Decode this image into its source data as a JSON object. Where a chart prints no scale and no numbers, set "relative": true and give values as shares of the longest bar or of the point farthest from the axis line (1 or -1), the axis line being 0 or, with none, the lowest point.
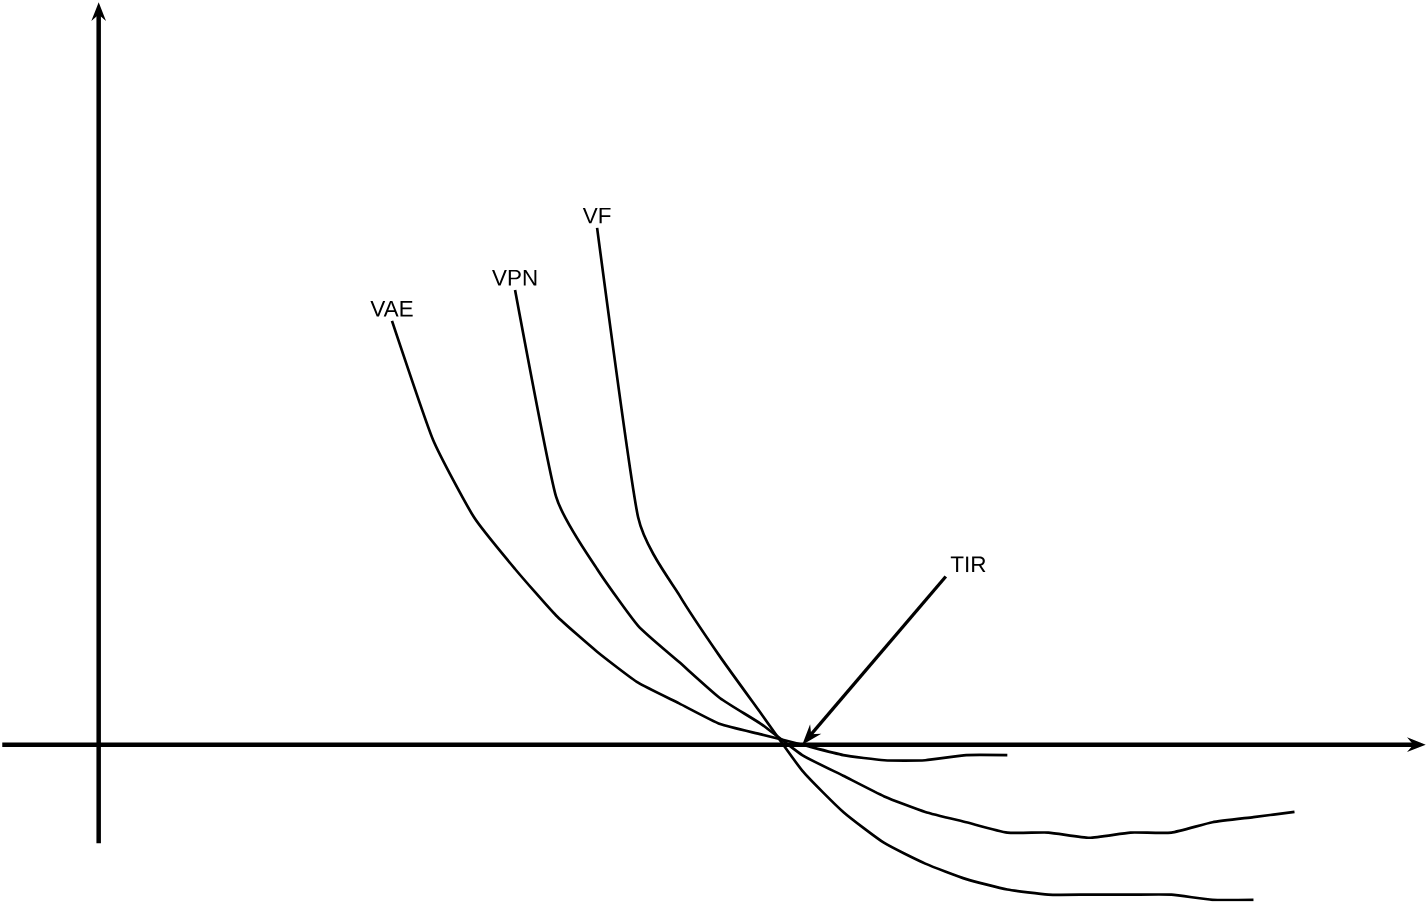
{
  "chart_data": {
    "type": "line",
    "relative": true,
    "marker": "none",
    "line_style": "solid",
    "categories": [
      null,
      null,
      null,
      null,
      null,
      null,
      null,
      null,
      null,
      null,
      null,
      null,
      null,
      null,
      null,
      null,
      null,
      null,
      null,
      null,
      null,
      null,
      null
    ],
    "series": [
      {
        "name": "VAE",
        "color": "#000000",
        "values": [
          0.82,
          0.59,
          0.44,
          0.34,
          0.25,
          0.18,
          0.12,
          0.08,
          0.04,
          0.02,
          0,
          -0.02,
          -0.03,
          -0.03,
          -0.02,
          -0.02,
          null,
          null,
          null,
          null,
          null,
          null,
          null
        ]
      },
      {
        "name": "VPN",
        "color": "#000000",
        "values": [
          null,
          null,
          null,
          0.88,
          0.48,
          0.34,
          0.23,
          0.16,
          0.09,
          0.04,
          -0.02,
          -0.06,
          -0.1,
          -0.13,
          -0.15,
          -0.17,
          -0.17,
          -0.18,
          -0.17,
          -0.17,
          -0.15,
          -0.14,
          -0.13
        ]
      },
      {
        "name": "VF",
        "color": "#000000",
        "values": [
          null,
          null,
          null,
          null,
          null,
          1.0,
          0.44,
          0.29,
          0.17,
          0.06,
          -0.05,
          -0.13,
          -0.19,
          -0.23,
          -0.26,
          -0.28,
          -0.29,
          -0.29,
          -0.29,
          -0.29,
          -0.3,
          -0.3,
          null
        ]
      }
    ],
    "annotations": [
      "TIR"
    ]
  }
}
